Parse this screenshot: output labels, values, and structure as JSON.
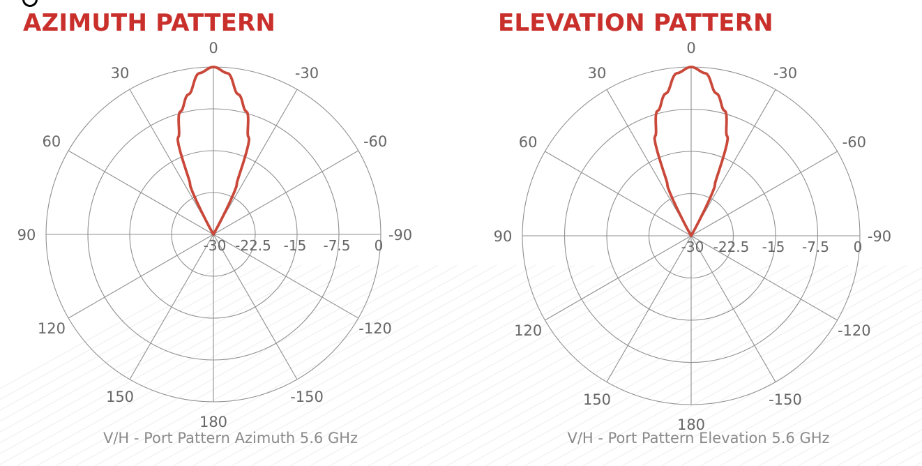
{
  "chart_data": [
    {
      "type": "polar-line",
      "title": "AZIMUTH PATTERN",
      "caption": "V/H - Port Pattern Azimuth 5.6 GHz",
      "angle_labels": [
        "0",
        "30",
        "60",
        "90",
        "120",
        "150",
        "180",
        "-150",
        "-120",
        "-90",
        "-60",
        "-30"
      ],
      "radial_tick_labels": [
        "-30",
        "-22.5",
        "-15",
        "-7.5",
        "0"
      ],
      "radial_range": [
        -30,
        0
      ],
      "angular_gridlines_every_deg": 30,
      "series": [
        {
          "color": "#c9483a",
          "angles": [
            -30,
            -25,
            -20,
            -15,
            -10,
            -5,
            0,
            5,
            10,
            15,
            20,
            25,
            30
          ],
          "values": [
            -30.0,
            -20.1,
            -11.5,
            -7.2,
            -4.5,
            -1.0,
            0.0,
            -1.0,
            -4.5,
            -7.2,
            -11.5,
            -20.1,
            -30.0
          ]
        }
      ]
    },
    {
      "type": "polar-line",
      "title": "ELEVATION PATTERN",
      "caption": "V/H - Port Pattern Elevation 5.6 GHz",
      "angle_labels": [
        "0",
        "30",
        "60",
        "90",
        "120",
        "150",
        "180",
        "-150",
        "-120",
        "-90",
        "-60",
        "-30"
      ],
      "radial_tick_labels": [
        "-30",
        "-22.5",
        "-15",
        "-7.5",
        "0"
      ],
      "radial_range": [
        -30,
        0
      ],
      "angular_gridlines_every_deg": 30,
      "series": [
        {
          "color": "#c9483a",
          "angles": [
            -30,
            -25,
            -20,
            -15,
            -10,
            -5,
            0,
            5,
            10,
            15,
            20,
            25,
            30
          ],
          "values": [
            -30.0,
            -20.0,
            -11.2,
            -7.0,
            -4.3,
            -1.0,
            0.0,
            -1.0,
            -4.3,
            -7.0,
            -11.2,
            -20.0,
            -30.0
          ]
        }
      ]
    }
  ]
}
